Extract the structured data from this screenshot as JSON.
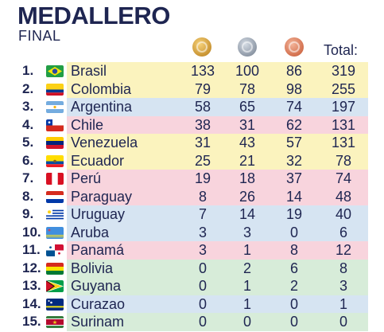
{
  "header": {
    "title": "MEDALLERO",
    "subtitle": "FINAL",
    "total_label": "Total:"
  },
  "medal_icons": [
    "gold-medal-icon",
    "silver-medal-icon",
    "bronze-medal-icon"
  ],
  "row_colors": {
    "yellow": "#fbf3be",
    "blue": "#d6e4f2",
    "pink": "#f8d4dd",
    "green": "#d7ecd9"
  },
  "table": {
    "rows": [
      {
        "rank": "1.",
        "country": "Brasil",
        "flag": "brazil-flag-icon",
        "gold": "133",
        "silver": "100",
        "bronze": "86",
        "total": "319",
        "color": "#fbf3be"
      },
      {
        "rank": "2.",
        "country": "Colombia",
        "flag": "colombia-flag-icon",
        "gold": "79",
        "silver": "78",
        "bronze": "98",
        "total": "255",
        "color": "#fbf3be"
      },
      {
        "rank": "3.",
        "country": "Argentina",
        "flag": "argentina-flag-icon",
        "gold": "58",
        "silver": "65",
        "bronze": "74",
        "total": "197",
        "color": "#d6e4f2"
      },
      {
        "rank": "4.",
        "country": "Chile",
        "flag": "chile-flag-icon",
        "gold": "38",
        "silver": "31",
        "bronze": "62",
        "total": "131",
        "color": "#f8d4dd"
      },
      {
        "rank": "5.",
        "country": "Venezuela",
        "flag": "venezuela-flag-icon",
        "gold": "31",
        "silver": "43",
        "bronze": "57",
        "total": "131",
        "color": "#fbf3be"
      },
      {
        "rank": "6.",
        "country": "Ecuador",
        "flag": "ecuador-flag-icon",
        "gold": "25",
        "silver": "21",
        "bronze": "32",
        "total": "78",
        "color": "#fbf3be"
      },
      {
        "rank": "7.",
        "country": "Perú",
        "flag": "peru-flag-icon",
        "gold": "19",
        "silver": "18",
        "bronze": "37",
        "total": "74",
        "color": "#f8d4dd"
      },
      {
        "rank": "8.",
        "country": "Paraguay",
        "flag": "paraguay-flag-icon",
        "gold": "8",
        "silver": "26",
        "bronze": "14",
        "total": "48",
        "color": "#f8d4dd"
      },
      {
        "rank": "9.",
        "country": "Uruguay",
        "flag": "uruguay-flag-icon",
        "gold": "7",
        "silver": "14",
        "bronze": "19",
        "total": "40",
        "color": "#d6e4f2"
      },
      {
        "rank": "10.",
        "country": "Aruba",
        "flag": "aruba-flag-icon",
        "gold": "3",
        "silver": "3",
        "bronze": "0",
        "total": "6",
        "color": "#d6e4f2"
      },
      {
        "rank": "11.",
        "country": "Panamá",
        "flag": "panama-flag-icon",
        "gold": "3",
        "silver": "1",
        "bronze": "8",
        "total": "12",
        "color": "#f8d4dd"
      },
      {
        "rank": "12.",
        "country": "Bolivia",
        "flag": "bolivia-flag-icon",
        "gold": "0",
        "silver": "2",
        "bronze": "6",
        "total": "8",
        "color": "#d7ecd9"
      },
      {
        "rank": "13.",
        "country": "Guyana",
        "flag": "guyana-flag-icon",
        "gold": "0",
        "silver": "1",
        "bronze": "2",
        "total": "3",
        "color": "#d7ecd9"
      },
      {
        "rank": "14.",
        "country": "Curazao",
        "flag": "curacao-flag-icon",
        "gold": "0",
        "silver": "1",
        "bronze": "0",
        "total": "1",
        "color": "#d6e4f2"
      },
      {
        "rank": "15.",
        "country": "Surinam",
        "flag": "suriname-flag-icon",
        "gold": "0",
        "silver": "0",
        "bronze": "0",
        "total": "0",
        "color": "#d7ecd9"
      }
    ]
  }
}
